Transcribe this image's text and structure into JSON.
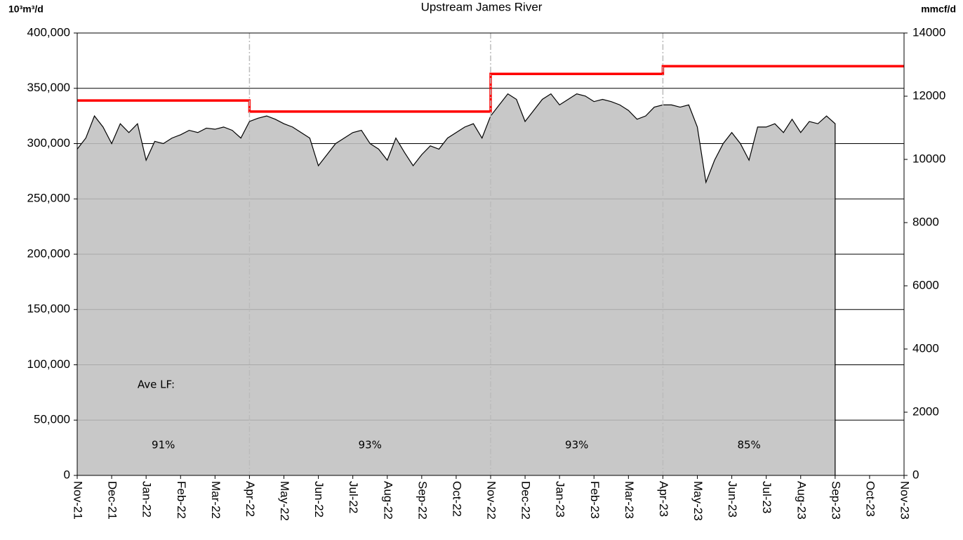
{
  "chart_data": {
    "type": "area",
    "title": "Upstream James River",
    "y_label": "10³m³/d",
    "y2_label": "mmcf/d",
    "categories": [
      "Nov-21",
      null,
      null,
      null,
      "Dec-21",
      null,
      null,
      null,
      "Jan-22",
      null,
      null,
      null,
      "Feb-22",
      null,
      null,
      null,
      "Mar-22",
      null,
      null,
      null,
      "Apr-22",
      null,
      null,
      null,
      "May-22",
      null,
      null,
      null,
      "Jun-22",
      null,
      null,
      null,
      "Jul-22",
      null,
      null,
      null,
      "Aug-22",
      null,
      null,
      null,
      "Sep-22",
      null,
      null,
      null,
      "Oct-22",
      null,
      null,
      null,
      "Nov-22",
      null,
      null,
      null,
      "Dec-22",
      null,
      null,
      null,
      "Jan-23",
      null,
      null,
      null,
      "Feb-23",
      null,
      null,
      null,
      "Mar-23",
      null,
      null,
      null,
      "Apr-23",
      null,
      null,
      null,
      "May-23",
      null,
      null,
      null,
      "Jun-23",
      null,
      null,
      null,
      "Jul-23",
      null,
      null,
      null,
      "Aug-23",
      null,
      null,
      null,
      "Sep-23",
      null,
      null,
      null,
      "Oct-23",
      null,
      null,
      null,
      "Nov-23"
    ],
    "series": [
      {
        "color": "#c0c0c0",
        "line_color": "#000000",
        "values": [
          295000,
          305000,
          325000,
          315000,
          300000,
          318000,
          310000,
          318000,
          285000,
          302000,
          300000,
          305000,
          308000,
          312000,
          310000,
          314000,
          313000,
          315000,
          312000,
          305000,
          320000,
          323000,
          325000,
          322000,
          318000,
          315000,
          310000,
          305000,
          280000,
          290000,
          300000,
          305000,
          310000,
          312000,
          300000,
          295000,
          285000,
          305000,
          292000,
          280000,
          290000,
          298000,
          295000,
          305000,
          310000,
          315000,
          318000,
          305000,
          325000,
          335000,
          345000,
          340000,
          320000,
          330000,
          340000,
          345000,
          335000,
          340000,
          345000,
          343000,
          338000,
          340000,
          338000,
          335000,
          330000,
          322000,
          325000,
          333000,
          335000,
          335000,
          333000,
          335000,
          315000,
          265000,
          285000,
          300000,
          310000,
          300000,
          285000,
          315000,
          315000,
          318000,
          310000,
          322000,
          310000,
          320000,
          318000,
          325000,
          318000,
          null,
          null,
          null,
          null,
          null,
          null,
          null,
          null
        ]
      },
      {
        "type": "step",
        "color": "#ff0000",
        "values": [
          339000,
          339000,
          339000,
          339000,
          339000,
          339000,
          339000,
          339000,
          339000,
          339000,
          339000,
          339000,
          339000,
          339000,
          339000,
          339000,
          339000,
          339000,
          339000,
          339000,
          329000,
          329000,
          329000,
          329000,
          329000,
          329000,
          329000,
          329000,
          329000,
          329000,
          329000,
          329000,
          329000,
          329000,
          329000,
          329000,
          329000,
          329000,
          329000,
          329000,
          329000,
          329000,
          329000,
          329000,
          329000,
          329000,
          329000,
          329000,
          363000,
          363000,
          363000,
          363000,
          363000,
          363000,
          363000,
          363000,
          363000,
          363000,
          363000,
          363000,
          363000,
          363000,
          363000,
          363000,
          363000,
          363000,
          363000,
          363000,
          370000,
          370000,
          370000,
          370000,
          370000,
          370000,
          370000,
          370000,
          370000,
          370000,
          370000,
          370000,
          370000,
          370000,
          370000,
          370000,
          370000,
          370000,
          370000,
          370000,
          370000,
          370000,
          370000,
          370000,
          370000,
          370000,
          370000,
          370000,
          370000
        ]
      }
    ],
    "ylim": [
      0,
      400000
    ],
    "yticks": [
      0,
      {
        "value": 50000,
        "label": "50,000"
      },
      {
        "value": 100000,
        "label": "100,000"
      },
      {
        "value": 150000,
        "label": "150,000"
      },
      {
        "value": 200000,
        "label": "200,000"
      },
      {
        "value": 250000,
        "label": "250,000"
      },
      {
        "value": 300000,
        "label": "300,000"
      },
      {
        "value": 350000,
        "label": "350,000"
      },
      {
        "value": 400000,
        "label": "400,000"
      }
    ],
    "y2lim": [
      0,
      14000
    ],
    "y2ticks": [
      0,
      2000,
      4000,
      6000,
      8000,
      10000,
      12000,
      14000
    ],
    "grid": true,
    "vlines": [
      20,
      48,
      68
    ],
    "annotation_header": "Ave LF:",
    "annotations": [
      "91%",
      "93%",
      "93%",
      "85%"
    ]
  }
}
